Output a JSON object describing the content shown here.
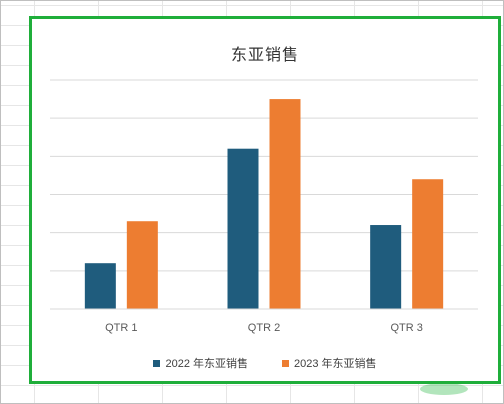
{
  "chart_data": {
    "type": "bar",
    "title": "东亚销售",
    "categories": [
      "QTR 1",
      "QTR 2",
      "QTR 3"
    ],
    "series": [
      {
        "name": "2022 年东亚销售",
        "values": [
          12,
          42,
          22
        ],
        "color": "#1f5c7d"
      },
      {
        "name": "2023 年东亚销售",
        "values": [
          23,
          55,
          34
        ],
        "color": "#ed7d31"
      }
    ],
    "ylim": [
      0,
      60
    ],
    "grid": true,
    "legend_position": "bottom"
  },
  "colors": {
    "chart_border": "#1fae3a",
    "gridline": "#d9d9d9",
    "axis": "#d9d9d9"
  }
}
